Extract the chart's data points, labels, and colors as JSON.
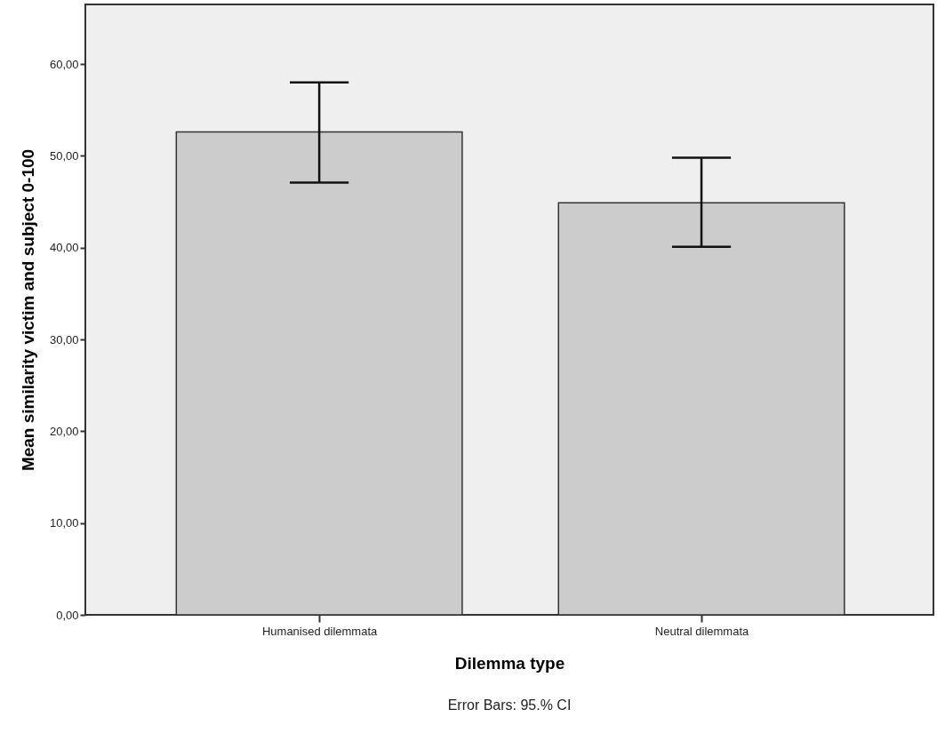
{
  "chart_data": {
    "type": "bar",
    "xlabel": "Dilemma type",
    "ylabel": "Mean similarity victim and subject   0-100",
    "categories": [
      "Humanised dilemmata",
      "Neutral dilemmata"
    ],
    "values": [
      52.6,
      44.9
    ],
    "errors": [
      [
        47.1,
        58.0
      ],
      [
        40.1,
        49.8
      ]
    ],
    "color": "#cccccc",
    "ylim": [
      0,
      66.5
    ],
    "yticks": [
      {
        "value": 0,
        "label": "0,00"
      },
      {
        "value": 10,
        "label": "10,00"
      },
      {
        "value": 20,
        "label": "20,00"
      },
      {
        "value": 30,
        "label": "30,00"
      },
      {
        "value": 40,
        "label": "40,00"
      },
      {
        "value": 50,
        "label": "50,00"
      },
      {
        "value": 60,
        "label": "60,00"
      }
    ],
    "annotations": [
      "Error Bars: 95.% CI"
    ]
  }
}
